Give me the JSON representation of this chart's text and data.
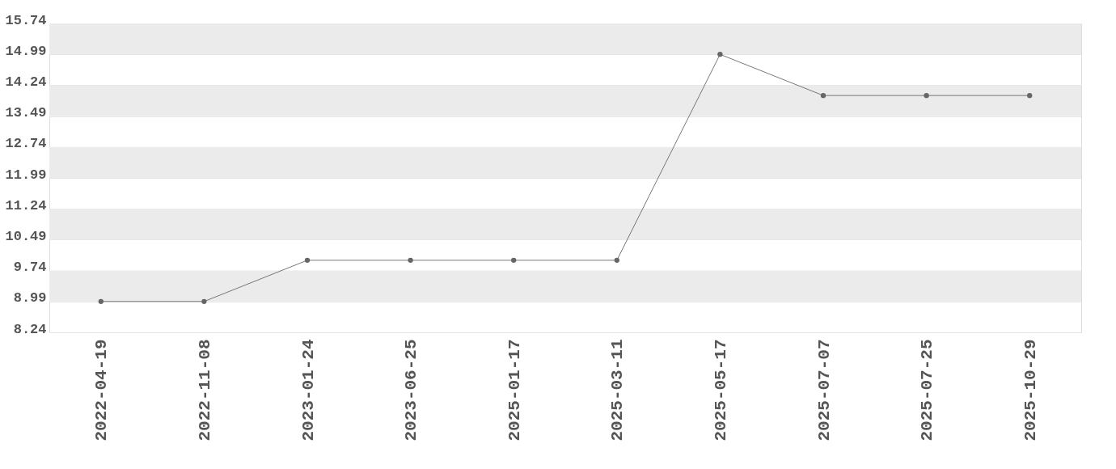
{
  "chart_data": {
    "type": "line",
    "categories": [
      "2022-04-19",
      "2022-11-08",
      "2023-01-24",
      "2023-06-25",
      "2025-01-17",
      "2025-03-11",
      "2025-05-17",
      "2025-07-07",
      "2025-07-25",
      "2025-10-29"
    ],
    "series": [
      {
        "color": "#777777",
        "values": [
          8.99,
          8.99,
          9.99,
          9.99,
          9.99,
          9.99,
          14.99,
          13.99,
          13.99,
          13.99
        ]
      }
    ],
    "ylim": [
      8.24,
      15.74
    ],
    "yticks": [
      8.24,
      8.99,
      9.74,
      10.49,
      11.24,
      11.99,
      12.74,
      13.49,
      14.24,
      14.99,
      15.74
    ],
    "grid": "y",
    "marker": "circle",
    "line_style": "solid"
  }
}
